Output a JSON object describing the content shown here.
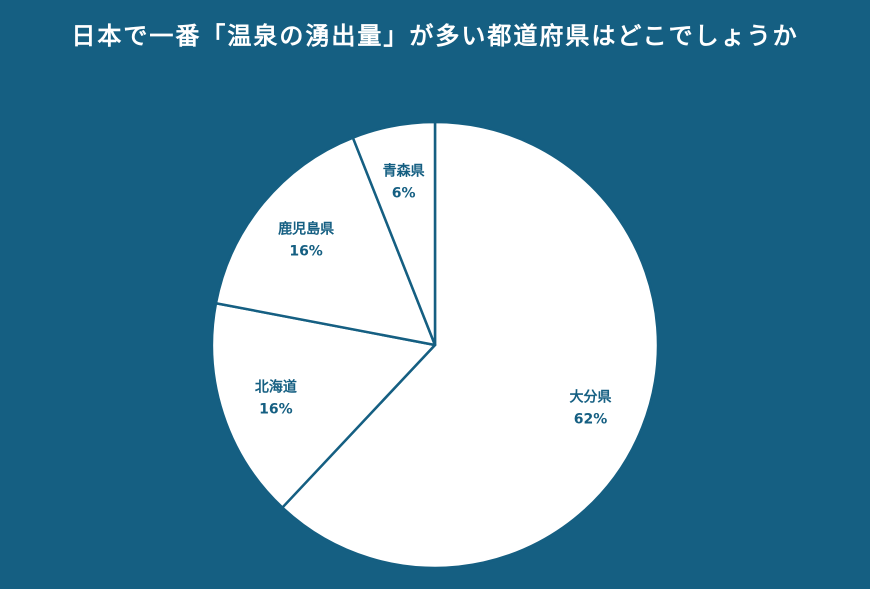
{
  "chart_data": {
    "type": "pie",
    "title": "日本で一番「温泉の湧出量」が多い都道府県はどこでしょうか",
    "categories": [
      "大分県",
      "北海道",
      "鹿児島県",
      "青森県"
    ],
    "values": [
      62,
      16,
      16,
      6
    ],
    "value_labels": [
      "62%",
      "16%",
      "16%",
      "6%"
    ],
    "start": "12 o'clock",
    "direction": "clockwise",
    "legend": "none",
    "colors": {
      "background": "#155f82",
      "slice_fill": "#ffffff",
      "slice_stroke": "#155f82",
      "label": "#155f82",
      "title": "#ffffff"
    }
  }
}
